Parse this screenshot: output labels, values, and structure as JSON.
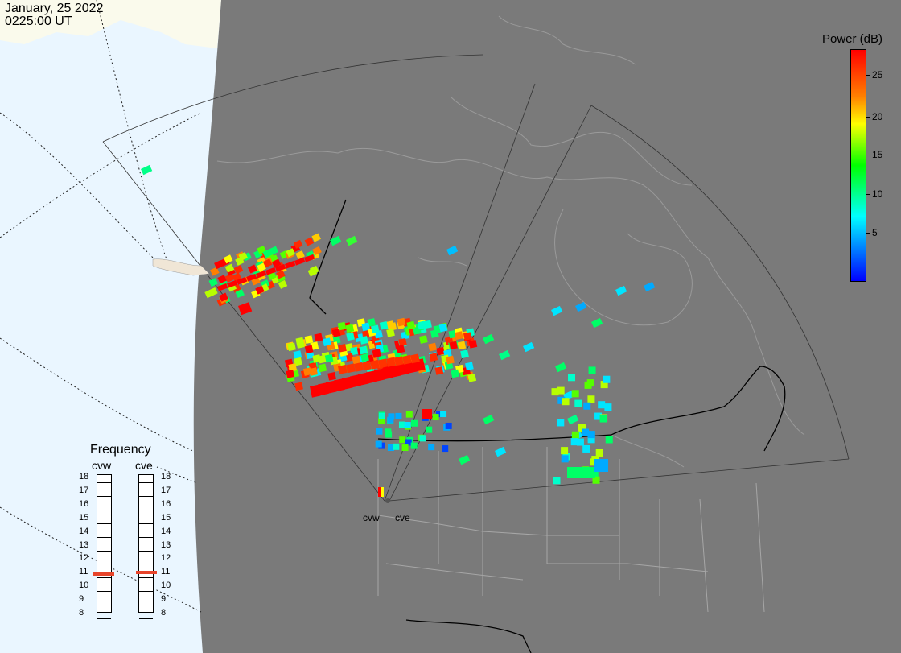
{
  "header": {
    "date": "January, 25 2022",
    "time": "0225:00 UT"
  },
  "power_legend": {
    "title": "Power (dB)",
    "ticks": [
      "25",
      "20",
      "15",
      "10",
      "5"
    ],
    "colors": [
      "#ff0000",
      "#ff7f00",
      "#ffff00",
      "#00ff00",
      "#00ffff",
      "#0000ff"
    ]
  },
  "frequency": {
    "title": "Frequency",
    "columns": [
      "cvw",
      "cve"
    ],
    "scale": [
      "18",
      "17",
      "16",
      "15",
      "14",
      "13",
      "12",
      "11",
      "10",
      "9",
      "8"
    ],
    "cvw_mhz": 10.5,
    "cve_mhz": 10.6,
    "marker_color": "#e8452b"
  },
  "sites": {
    "cvw": "cvw",
    "cve": "cve"
  },
  "colors": {
    "night_shade": "#7a7a7a",
    "day_ocean": "#eaf6ff",
    "day_land": "#fafaec",
    "coast": "#9a9a9a",
    "border": "#000000"
  }
}
